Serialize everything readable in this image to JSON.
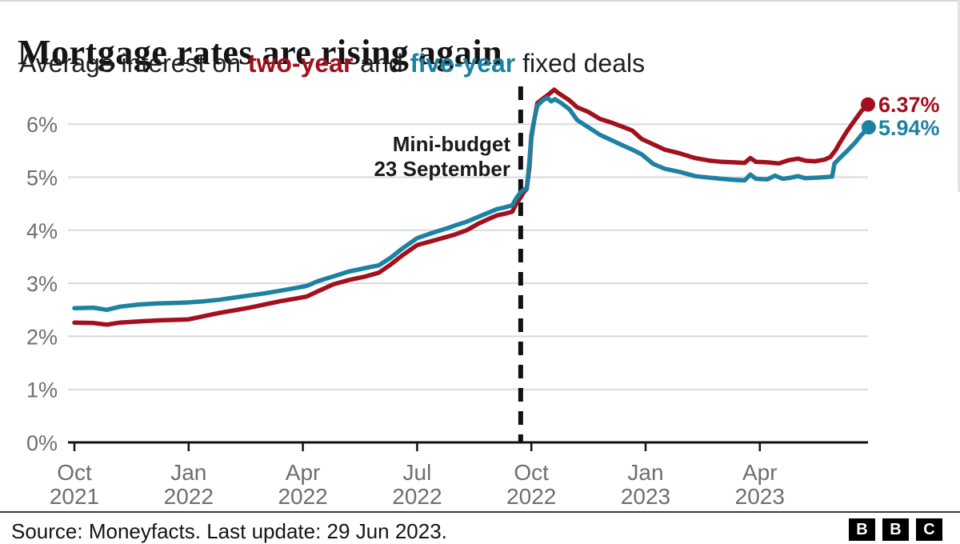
{
  "header": {
    "title": "Mortgage rates are rising again",
    "subtitle_prefix": "Average interest on ",
    "subtitle_two_year": "two-year",
    "subtitle_middle": " and ",
    "subtitle_five_year": "five-year",
    "subtitle_suffix": " fixed deals"
  },
  "colors": {
    "two_year": "#a1101c",
    "five_year": "#1f81a2",
    "axis_label": "#6e6e73",
    "gridline": "#d9d9d9",
    "axis_line": "#111111",
    "annotation_line": "#111111"
  },
  "annotation": {
    "line1": "Mini-budget",
    "line2": "23 September",
    "month": 11.72
  },
  "end_labels": {
    "two_year": "6.37%",
    "five_year": "5.94%"
  },
  "footer": {
    "source": "Source: Moneyfacts. Last update: 29 Jun 2023.",
    "logo_letters": [
      "B",
      "B",
      "C"
    ]
  },
  "chart_data": {
    "type": "line",
    "title": "Mortgage rates are rising again",
    "subtitle": "Average interest on two-year and five-year fixed deals",
    "unit": "%",
    "grid": "horizontal",
    "legend_position": "none",
    "y_axis": {
      "min": 0,
      "max": 6.9,
      "tick_values": [
        0,
        1,
        2,
        3,
        4,
        5,
        6
      ],
      "tick_labels": [
        "0%",
        "1%",
        "2%",
        "3%",
        "4%",
        "5%",
        "6%"
      ]
    },
    "x_axis": {
      "note": "month offset 0 = Oct 2021, in months",
      "ticks": [
        {
          "month": 0,
          "line1": "Oct",
          "line2": "2021"
        },
        {
          "month": 3,
          "line1": "Jan",
          "line2": "2022"
        },
        {
          "month": 6,
          "line1": "Apr",
          "line2": "2022"
        },
        {
          "month": 9,
          "line1": "Jul",
          "line2": "2022"
        },
        {
          "month": 12,
          "line1": "Oct",
          "line2": "2022"
        },
        {
          "month": 15,
          "line1": "Jan",
          "line2": "2023"
        },
        {
          "month": 18,
          "line1": "Apr",
          "line2": "2023"
        }
      ]
    },
    "annotation": {
      "label": "Mini-budget 23 September",
      "month": 11.72
    },
    "series": [
      {
        "name": "two-year",
        "color": "#a1101c",
        "end_value": 6.37,
        "end_label": "6.37%",
        "points": [
          [
            0,
            2.26
          ],
          [
            0.5,
            2.25
          ],
          [
            0.85,
            2.22
          ],
          [
            1.2,
            2.26
          ],
          [
            1.7,
            2.28
          ],
          [
            2.2,
            2.3
          ],
          [
            2.7,
            2.31
          ],
          [
            3.0,
            2.32
          ],
          [
            3.4,
            2.38
          ],
          [
            3.8,
            2.44
          ],
          [
            4.2,
            2.49
          ],
          [
            4.6,
            2.54
          ],
          [
            5.0,
            2.6
          ],
          [
            5.4,
            2.66
          ],
          [
            5.8,
            2.71
          ],
          [
            6.1,
            2.75
          ],
          [
            6.4,
            2.85
          ],
          [
            6.8,
            2.98
          ],
          [
            7.2,
            3.06
          ],
          [
            7.6,
            3.12
          ],
          [
            8.0,
            3.2
          ],
          [
            8.3,
            3.35
          ],
          [
            8.6,
            3.52
          ],
          [
            9.0,
            3.72
          ],
          [
            9.4,
            3.8
          ],
          [
            9.8,
            3.88
          ],
          [
            10.0,
            3.92
          ],
          [
            10.3,
            4.0
          ],
          [
            10.6,
            4.12
          ],
          [
            10.9,
            4.22
          ],
          [
            11.1,
            4.28
          ],
          [
            11.3,
            4.31
          ],
          [
            11.5,
            4.35
          ],
          [
            11.6,
            4.5
          ],
          [
            11.72,
            4.62
          ],
          [
            11.8,
            4.72
          ],
          [
            11.88,
            4.78
          ],
          [
            11.95,
            5.2
          ],
          [
            12.0,
            5.75
          ],
          [
            12.08,
            6.1
          ],
          [
            12.16,
            6.4
          ],
          [
            12.3,
            6.48
          ],
          [
            12.45,
            6.56
          ],
          [
            12.6,
            6.65
          ],
          [
            12.72,
            6.58
          ],
          [
            12.85,
            6.52
          ],
          [
            13.0,
            6.45
          ],
          [
            13.2,
            6.32
          ],
          [
            13.5,
            6.23
          ],
          [
            13.8,
            6.1
          ],
          [
            14.1,
            6.03
          ],
          [
            14.4,
            5.95
          ],
          [
            14.65,
            5.88
          ],
          [
            14.9,
            5.72
          ],
          [
            15.2,
            5.62
          ],
          [
            15.5,
            5.52
          ],
          [
            15.9,
            5.45
          ],
          [
            16.3,
            5.36
          ],
          [
            16.7,
            5.31
          ],
          [
            17.0,
            5.29
          ],
          [
            17.3,
            5.28
          ],
          [
            17.6,
            5.27
          ],
          [
            17.75,
            5.36
          ],
          [
            17.9,
            5.29
          ],
          [
            18.2,
            5.28
          ],
          [
            18.5,
            5.26
          ],
          [
            18.75,
            5.32
          ],
          [
            19.0,
            5.35
          ],
          [
            19.2,
            5.31
          ],
          [
            19.45,
            5.3
          ],
          [
            19.7,
            5.33
          ],
          [
            19.85,
            5.38
          ],
          [
            20.0,
            5.52
          ],
          [
            20.1,
            5.65
          ],
          [
            20.3,
            5.88
          ],
          [
            20.5,
            6.08
          ],
          [
            20.67,
            6.25
          ],
          [
            20.84,
            6.37
          ]
        ]
      },
      {
        "name": "five-year",
        "color": "#1f81a2",
        "end_value": 5.94,
        "end_label": "5.94%",
        "points": [
          [
            0,
            2.53
          ],
          [
            0.5,
            2.54
          ],
          [
            0.85,
            2.5
          ],
          [
            1.2,
            2.56
          ],
          [
            1.7,
            2.6
          ],
          [
            2.2,
            2.62
          ],
          [
            2.7,
            2.63
          ],
          [
            3.0,
            2.64
          ],
          [
            3.4,
            2.66
          ],
          [
            3.8,
            2.69
          ],
          [
            4.2,
            2.73
          ],
          [
            4.6,
            2.77
          ],
          [
            5.0,
            2.81
          ],
          [
            5.4,
            2.86
          ],
          [
            5.8,
            2.91
          ],
          [
            6.1,
            2.95
          ],
          [
            6.4,
            3.04
          ],
          [
            6.8,
            3.13
          ],
          [
            7.2,
            3.22
          ],
          [
            7.6,
            3.28
          ],
          [
            8.0,
            3.34
          ],
          [
            8.3,
            3.48
          ],
          [
            8.6,
            3.65
          ],
          [
            9.0,
            3.85
          ],
          [
            9.4,
            3.95
          ],
          [
            9.8,
            4.04
          ],
          [
            10.0,
            4.09
          ],
          [
            10.3,
            4.16
          ],
          [
            10.6,
            4.25
          ],
          [
            10.9,
            4.34
          ],
          [
            11.1,
            4.4
          ],
          [
            11.3,
            4.43
          ],
          [
            11.5,
            4.47
          ],
          [
            11.6,
            4.6
          ],
          [
            11.72,
            4.72
          ],
          [
            11.8,
            4.76
          ],
          [
            11.88,
            4.8
          ],
          [
            11.95,
            5.3
          ],
          [
            12.0,
            5.8
          ],
          [
            12.08,
            6.1
          ],
          [
            12.16,
            6.35
          ],
          [
            12.3,
            6.45
          ],
          [
            12.42,
            6.5
          ],
          [
            12.52,
            6.43
          ],
          [
            12.62,
            6.47
          ],
          [
            12.78,
            6.4
          ],
          [
            13.0,
            6.28
          ],
          [
            13.2,
            6.08
          ],
          [
            13.5,
            5.94
          ],
          [
            13.8,
            5.8
          ],
          [
            14.1,
            5.7
          ],
          [
            14.4,
            5.6
          ],
          [
            14.65,
            5.52
          ],
          [
            14.9,
            5.43
          ],
          [
            15.2,
            5.25
          ],
          [
            15.5,
            5.16
          ],
          [
            15.9,
            5.1
          ],
          [
            16.3,
            5.02
          ],
          [
            16.7,
            4.99
          ],
          [
            17.0,
            4.97
          ],
          [
            17.3,
            4.95
          ],
          [
            17.6,
            4.94
          ],
          [
            17.75,
            5.05
          ],
          [
            17.9,
            4.97
          ],
          [
            18.2,
            4.96
          ],
          [
            18.4,
            5.03
          ],
          [
            18.6,
            4.97
          ],
          [
            18.8,
            4.99
          ],
          [
            19.0,
            5.02
          ],
          [
            19.2,
            4.98
          ],
          [
            19.45,
            4.99
          ],
          [
            19.7,
            5.0
          ],
          [
            19.9,
            5.01
          ],
          [
            19.96,
            5.26
          ],
          [
            20.1,
            5.36
          ],
          [
            20.3,
            5.5
          ],
          [
            20.5,
            5.65
          ],
          [
            20.67,
            5.8
          ],
          [
            20.86,
            5.94
          ]
        ]
      }
    ]
  }
}
